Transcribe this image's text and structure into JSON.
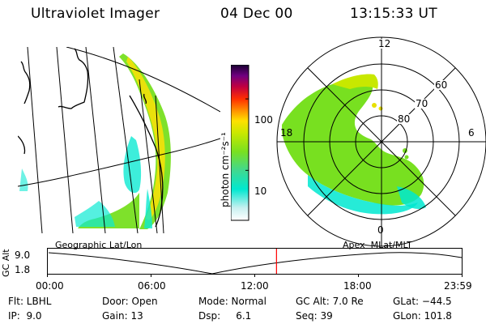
{
  "header": {
    "title": "Ultraviolet Imager",
    "date": "04 Dec 00",
    "time": "13:15:33 UT"
  },
  "colorbar": {
    "unit_label": "photon cm⁻²s⁻¹",
    "ticks": [
      {
        "label": "100",
        "value": 100
      },
      {
        "label": "10",
        "value": 10
      }
    ]
  },
  "geo_map": {
    "label": "Geographic Lat/Lon"
  },
  "polar_map": {
    "label": "Apex  MLat/MLT",
    "mlt_labels": [
      "12",
      "18",
      "6",
      "0"
    ],
    "mlat_labels": [
      "60",
      "70",
      "80"
    ]
  },
  "timeline": {
    "y_axis_label": "GC Alt",
    "y_ticks": [
      "9.0",
      "1.8"
    ],
    "x_ticks": [
      "00:00",
      "06:00",
      "12:00",
      "18:00",
      "23:59"
    ],
    "marker_time": "13:15:33"
  },
  "footer": {
    "rows": [
      [
        "Flt: LBHL",
        "Door: Open",
        "Mode: Normal",
        "GC Alt: 7.0 Re",
        "GLat: −44.5"
      ],
      [
        "IP:  9.0",
        "Gain: 13",
        "Dsp:     6.1",
        "Seq: 39",
        "GLon: 101.8"
      ]
    ]
  },
  "colors": {
    "marker": "#ff0000",
    "aurora_low": "#00e8d0",
    "aurora_mid": "#78e020",
    "aurora_high": "#e8e000"
  }
}
